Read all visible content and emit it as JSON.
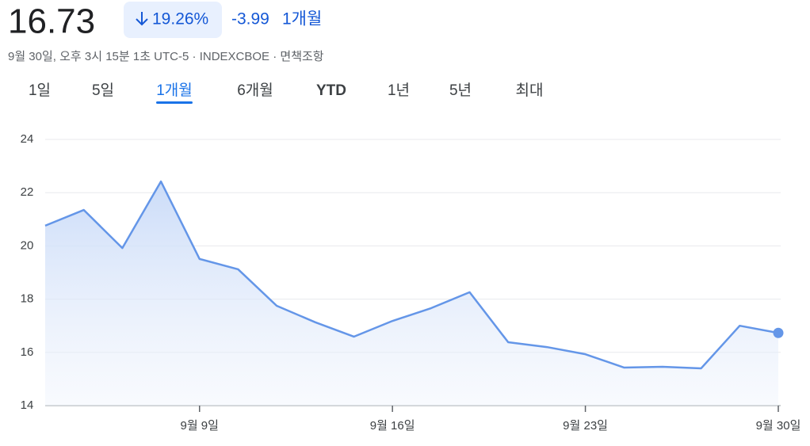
{
  "header": {
    "price": "16.73",
    "change_percent": "19.26%",
    "change": "-3.99",
    "period": "1개월",
    "timestamp": "9월 30일, 오후 3시 15분 1초 UTC-5",
    "source": "INDEXCBOE",
    "disclaimer": "면책조항"
  },
  "tabs": [
    "1일",
    "5일",
    "1개월",
    "6개월",
    "YTD",
    "1년",
    "5년",
    "최대"
  ],
  "selected_tab": 2,
  "chart_data": {
    "type": "area",
    "color": "#6496e8",
    "categories": [
      null,
      null,
      null,
      null,
      "9월 9일",
      null,
      null,
      null,
      null,
      "9월 16일",
      null,
      null,
      null,
      null,
      "9월 23일",
      null,
      null,
      null,
      null,
      "9월 30일"
    ],
    "values": [
      20.76,
      21.35,
      19.92,
      22.42,
      19.51,
      19.12,
      17.75,
      17.13,
      16.59,
      17.18,
      17.66,
      18.26,
      16.38,
      16.2,
      15.93,
      15.43,
      15.46,
      15.4,
      17.0,
      16.73
    ],
    "ylim": [
      14,
      24
    ],
    "yticks": [
      14,
      16,
      18,
      20,
      22,
      24
    ],
    "grid": true
  }
}
